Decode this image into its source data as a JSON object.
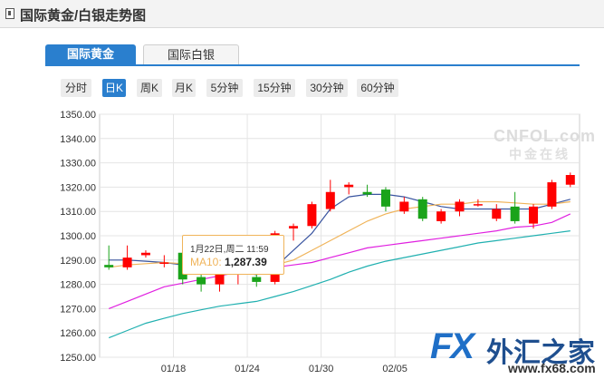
{
  "header": {
    "title": "国际黄金/白银走势图"
  },
  "tabs": [
    {
      "label": "国际黄金",
      "active": true
    },
    {
      "label": "国际白银",
      "active": false
    }
  ],
  "periods": [
    {
      "label": "分时",
      "active": false
    },
    {
      "label": "日K",
      "active": true
    },
    {
      "label": "周K",
      "active": false
    },
    {
      "label": "月K",
      "active": false
    },
    {
      "label": "5分钟",
      "active": false
    },
    {
      "label": "15分钟",
      "active": false
    },
    {
      "label": "30分钟",
      "active": false
    },
    {
      "label": "60分钟",
      "active": false
    }
  ],
  "tooltip": {
    "date": "1月22日,周二 11:59",
    "ma_label": "MA10:",
    "ma_value": "1,287.39"
  },
  "watermark": {
    "line1": "CNFOL.com",
    "line2": "中金在线"
  },
  "logo": {
    "fx": "FX",
    "cn": "外汇之家",
    "url": "www.fx68.com"
  },
  "colors": {
    "up": "#ff0000",
    "down": "#1aa31a",
    "ma5": "#3a55a0",
    "ma10": "#f0b45a",
    "ma20": "#e020e0",
    "ma60": "#20b0b0",
    "accent": "#2a7fce"
  },
  "chart_data": {
    "type": "candlestick",
    "ylim": [
      1250,
      1350
    ],
    "yticks": [
      1250,
      1260,
      1270,
      1280,
      1290,
      1300,
      1310,
      1320,
      1330,
      1340,
      1350
    ],
    "ytick_labels": [
      "1250.00",
      "1260.00",
      "1270.00",
      "1280.00",
      "1290.00",
      "1300.00",
      "1310.00",
      "1320.00",
      "1330.00",
      "1340.00",
      "1350.00"
    ],
    "xtick_labels": [
      "01/18",
      "01/24",
      "01/30",
      "02/05"
    ],
    "xtick_index": [
      4,
      8,
      12,
      16
    ],
    "candles": [
      {
        "o": 1288,
        "c": 1287,
        "h": 1296,
        "l": 1286
      },
      {
        "o": 1287,
        "c": 1291,
        "h": 1296,
        "l": 1286
      },
      {
        "o": 1292,
        "c": 1293,
        "h": 1294,
        "l": 1291
      },
      {
        "o": 1289,
        "c": 1289,
        "h": 1292,
        "l": 1287
      },
      {
        "o": 1293,
        "c": 1282,
        "h": 1294,
        "l": 1280
      },
      {
        "o": 1283,
        "c": 1280,
        "h": 1285,
        "l": 1277
      },
      {
        "o": 1280,
        "c": 1284,
        "h": 1287,
        "l": 1277
      },
      {
        "o": 1286,
        "c": 1286,
        "h": 1290,
        "l": 1280
      },
      {
        "o": 1283,
        "c": 1281,
        "h": 1286,
        "l": 1279
      },
      {
        "o": 1281,
        "c": 1301,
        "h": 1302,
        "l": 1280
      },
      {
        "o": 1303,
        "c": 1304,
        "h": 1305,
        "l": 1298
      },
      {
        "o": 1304,
        "c": 1313,
        "h": 1314,
        "l": 1303
      },
      {
        "o": 1311,
        "c": 1318,
        "h": 1323,
        "l": 1310
      },
      {
        "o": 1320,
        "c": 1321,
        "h": 1322,
        "l": 1317
      },
      {
        "o": 1318,
        "c": 1317,
        "h": 1321,
        "l": 1316
      },
      {
        "o": 1319,
        "c": 1312,
        "h": 1320,
        "l": 1310
      },
      {
        "o": 1310,
        "c": 1314,
        "h": 1316,
        "l": 1309
      },
      {
        "o": 1315,
        "c": 1307,
        "h": 1316,
        "l": 1306
      },
      {
        "o": 1306,
        "c": 1310,
        "h": 1311,
        "l": 1305
      },
      {
        "o": 1310,
        "c": 1314,
        "h": 1315,
        "l": 1308
      },
      {
        "o": 1313,
        "c": 1313,
        "h": 1315,
        "l": 1312
      },
      {
        "o": 1307,
        "c": 1311,
        "h": 1313,
        "l": 1306
      },
      {
        "o": 1312,
        "c": 1306,
        "h": 1318,
        "l": 1305
      },
      {
        "o": 1305,
        "c": 1312,
        "h": 1313,
        "l": 1303
      },
      {
        "o": 1312,
        "c": 1322,
        "h": 1323,
        "l": 1311
      },
      {
        "o": 1321,
        "c": 1325,
        "h": 1326,
        "l": 1320
      }
    ],
    "series": [
      {
        "key": "ma5",
        "values": [
          1290,
          1290,
          1289.5,
          1289,
          1288,
          1287,
          1286,
          1285,
          1284,
          1287,
          1294,
          1301,
          1311,
          1316,
          1317,
          1317,
          1316,
          1314,
          1312,
          1311,
          1311,
          1311,
          1311,
          1311,
          1313,
          1315
        ]
      },
      {
        "key": "ma10",
        "values": [
          1287,
          1288,
          1288.5,
          1289,
          1288.5,
          1288,
          1287.5,
          1287,
          1287.4,
          1288,
          1290,
          1294,
          1298,
          1302,
          1306,
          1309,
          1311,
          1312,
          1313,
          1313,
          1314,
          1314,
          1313.5,
          1313,
          1313,
          1314
        ]
      },
      {
        "key": "ma20",
        "values": [
          1270,
          1273,
          1276,
          1279,
          1280.5,
          1282,
          1283.5,
          1285,
          1286,
          1287,
          1288,
          1289,
          1291,
          1293,
          1295,
          1296,
          1297,
          1298,
          1299,
          1300,
          1301,
          1302,
          1303.5,
          1304,
          1305.5,
          1309
        ]
      },
      {
        "key": "ma60",
        "values": [
          1258,
          1261,
          1264,
          1266,
          1268,
          1269.5,
          1271,
          1272,
          1273,
          1275,
          1277,
          1279.5,
          1282,
          1285,
          1287.5,
          1289.5,
          1291,
          1292.5,
          1294,
          1295.5,
          1297,
          1298,
          1299,
          1300,
          1301,
          1302
        ]
      }
    ]
  }
}
